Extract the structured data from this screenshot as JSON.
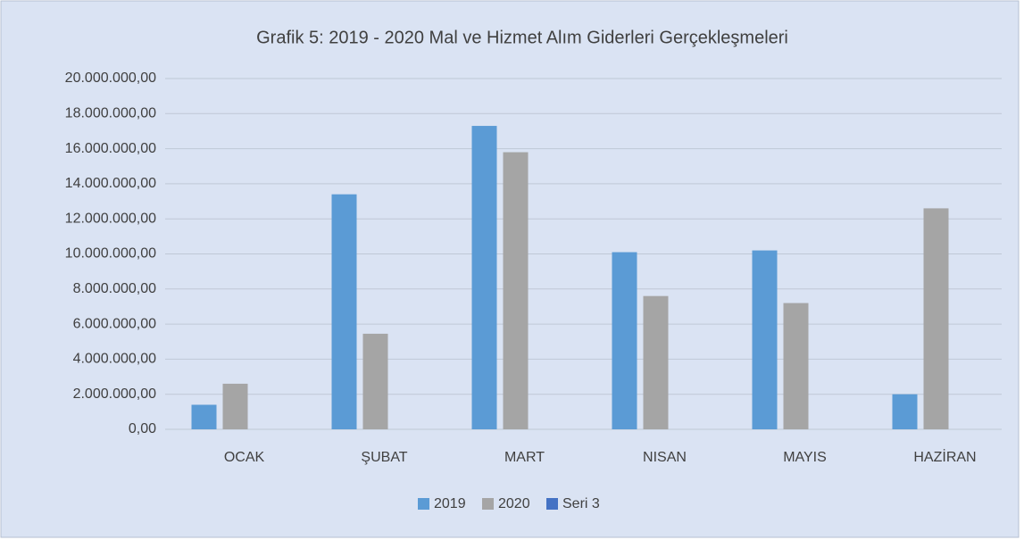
{
  "chart_data": {
    "type": "bar",
    "title": "Grafik 5: 2019 - 2020 Mal ve Hizmet Alım Giderleri Gerçekleşmeleri",
    "categories": [
      "OCAK",
      "ŞUBAT",
      "MART",
      "NISAN",
      "MAYIS",
      "HAZİRAN"
    ],
    "series": [
      {
        "name": "2019",
        "color": "#5b9bd5",
        "values": [
          1400000,
          13400000,
          17300000,
          10100000,
          10200000,
          2000000
        ]
      },
      {
        "name": "2020",
        "color": "#a5a5a5",
        "values": [
          2600000,
          5450000,
          15800000,
          7600000,
          7200000,
          12600000
        ]
      },
      {
        "name": "Seri 3",
        "color": "#4472c4",
        "values": [
          null,
          null,
          null,
          null,
          null,
          null
        ]
      }
    ],
    "ylim": [
      0,
      20000000
    ],
    "yticks": [
      {
        "value": 0,
        "label": "0,00"
      },
      {
        "value": 2000000,
        "label": "2.000.000,00"
      },
      {
        "value": 4000000,
        "label": "4.000.000,00"
      },
      {
        "value": 6000000,
        "label": "6.000.000,00"
      },
      {
        "value": 8000000,
        "label": "8.000.000,00"
      },
      {
        "value": 10000000,
        "label": "10.000.000,00"
      },
      {
        "value": 12000000,
        "label": "12.000.000,00"
      },
      {
        "value": 14000000,
        "label": "14.000.000,00"
      },
      {
        "value": 16000000,
        "label": "16.000.000,00"
      },
      {
        "value": 18000000,
        "label": "18.000.000,00"
      },
      {
        "value": 20000000,
        "label": "20.000.000,00"
      }
    ],
    "grid": true,
    "legend": "bottom"
  }
}
